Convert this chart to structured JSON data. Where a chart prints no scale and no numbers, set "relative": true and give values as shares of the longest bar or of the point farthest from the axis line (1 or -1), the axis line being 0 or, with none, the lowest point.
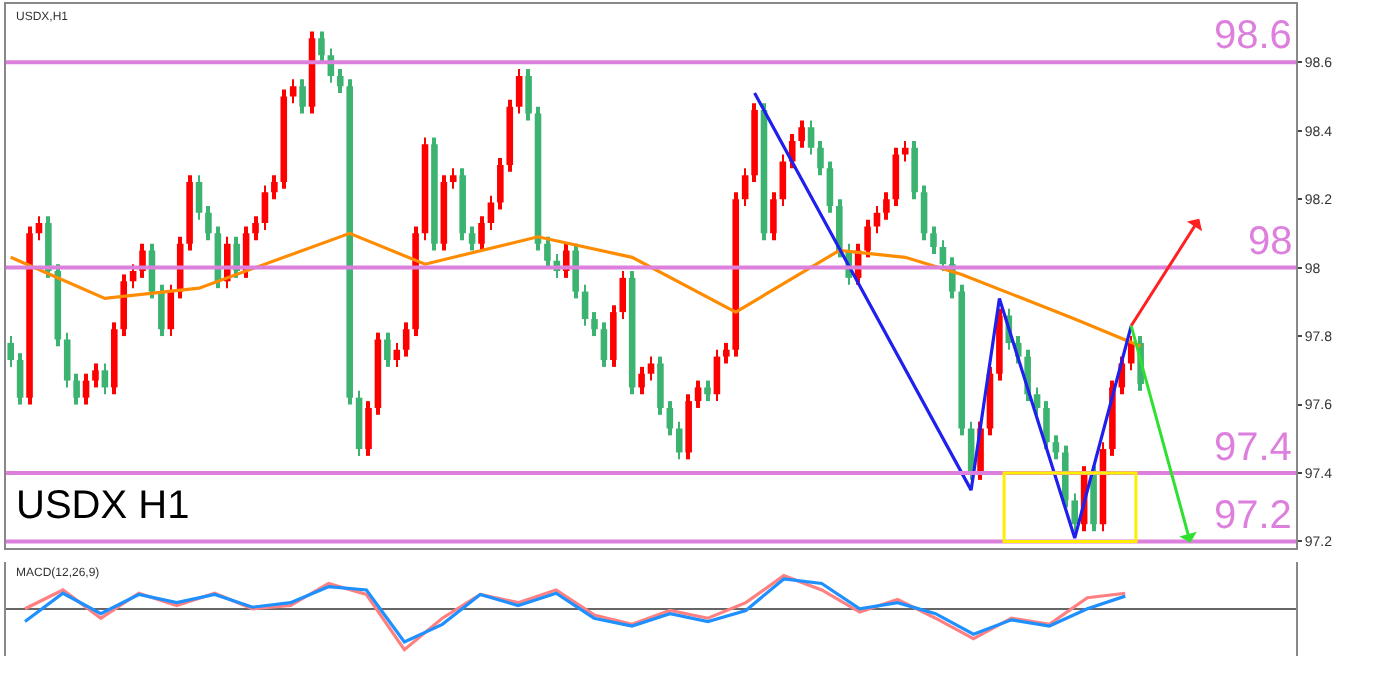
{
  "chart_data": [
    {
      "type": "candlestick",
      "annotations": [
        "USDX,H1",
        "USDX H1"
      ],
      "categories": [
        null,
        null,
        null,
        null,
        null,
        null,
        null,
        null,
        null,
        null,
        null,
        null,
        null,
        null,
        null,
        null,
        null,
        null,
        null,
        null,
        null,
        null,
        null,
        null,
        null,
        null,
        null,
        null,
        null,
        null,
        null,
        null,
        null,
        null,
        null,
        null,
        null,
        null,
        null,
        null,
        null,
        null,
        null,
        null,
        null,
        null,
        null,
        null,
        null,
        null,
        null,
        null,
        null,
        null,
        null,
        null,
        null,
        null,
        null,
        null,
        null,
        null,
        null,
        null,
        null,
        null,
        null,
        null,
        null,
        null,
        null,
        null,
        null,
        null,
        null,
        null,
        null,
        null,
        null,
        null,
        null,
        null,
        null,
        null,
        null,
        null,
        null,
        null,
        null,
        null,
        null,
        null,
        null,
        null,
        null,
        null,
        null,
        null,
        null,
        null,
        null,
        null,
        null,
        null,
        null,
        null,
        null,
        null,
        null,
        null,
        null,
        null,
        null,
        null,
        null,
        null,
        null,
        null,
        null,
        null,
        null,
        null,
        null,
        null,
        null,
        null,
        null,
        null,
        null,
        null,
        null,
        null,
        null,
        null,
        null,
        null,
        null
      ],
      "colors": [
        "#3cb371",
        "#3cb371",
        "#ff0000",
        "#ff0000",
        "#3cb371",
        "#3cb371",
        "#3cb371",
        "#3cb371",
        "#ff0000",
        "#ff0000",
        "#3cb371",
        "#ff0000",
        "#ff0000",
        "#ff0000",
        "#ff0000",
        "#3cb371",
        "#3cb371",
        "#ff0000",
        "#ff0000",
        "#ff0000",
        "#3cb371",
        "#3cb371",
        "#3cb371",
        "#ff0000",
        "#3cb371",
        "#ff0000",
        "#ff0000",
        "#ff0000",
        "#ff0000",
        "#ff0000",
        "#ff0000",
        "#3cb371",
        "#ff0000",
        "#3cb371",
        "#3cb371",
        "#3cb371",
        "#3cb371",
        "#3cb371",
        "#ff0000",
        "#ff0000",
        "#3cb371",
        "#ff0000",
        "#ff0000",
        "#ff0000",
        "#ff0000",
        "#3cb371",
        "#ff0000",
        "#ff0000",
        "#3cb371",
        "#3cb371",
        "#ff0000",
        "#ff0000",
        "#ff0000",
        "#ff0000",
        "#ff0000",
        "#3cb371",
        "#3cb371",
        "#3cb371",
        "#3cb371",
        "#ff0000",
        "#3cb371",
        "#3cb371",
        "#3cb371",
        "#3cb371",
        "#ff0000",
        "#ff0000",
        "#3cb371",
        "#ff0000",
        "#ff0000",
        "#3cb371",
        "#3cb371",
        "#3cb371",
        "#ff0000",
        "#ff0000",
        "#3cb371",
        "#ff0000",
        "#ff0000",
        "#ff0000",
        "#ff0000",
        "#ff0000",
        "#3cb371",
        "#ff0000",
        "#ff0000",
        "#ff0000",
        "#ff0000",
        "#3cb371",
        "#3cb371",
        "#3cb371",
        "#3cb371",
        "#3cb371",
        "#ff0000",
        "#ff0000",
        "#ff0000",
        "#ff0000",
        "#ff0000",
        "#ff0000",
        "#3cb371",
        "#3cb371",
        "#3cb371",
        "#3cb371",
        "#3cb371",
        "#3cb371",
        "#3cb371",
        "#ff0000",
        "#ff0000",
        "#ff0000",
        "#3cb371",
        "#3cb371",
        "#3cb371",
        "#3cb371",
        "#3cb371",
        "#3cb371",
        "#3cb371",
        "#3cb371",
        "#ff0000",
        "#3cb371",
        "#ff0000",
        "#ff0000",
        "#ff0000",
        "#ff0000",
        "#3cb371",
        null,
        null,
        null,
        null,
        null,
        null,
        null,
        null,
        null,
        null,
        null,
        null,
        null,
        null,
        null,
        null
      ],
      "ohlc": [
        [
          97.78,
          97.8,
          97.71,
          97.73
        ],
        [
          97.73,
          97.75,
          97.6,
          97.62
        ],
        [
          97.62,
          98.12,
          97.6,
          98.1
        ],
        [
          98.1,
          98.15,
          98.08,
          98.13
        ],
        [
          98.13,
          98.15,
          97.97,
          97.99
        ],
        [
          97.99,
          98.01,
          97.77,
          97.79
        ],
        [
          97.79,
          97.81,
          97.65,
          97.67
        ],
        [
          97.67,
          97.69,
          97.6,
          97.62
        ],
        [
          97.62,
          97.69,
          97.6,
          97.67
        ],
        [
          97.67,
          97.72,
          97.65,
          97.7
        ],
        [
          97.7,
          97.72,
          97.63,
          97.65
        ],
        [
          97.65,
          97.84,
          97.63,
          97.82
        ],
        [
          97.82,
          97.98,
          97.8,
          97.96
        ],
        [
          97.96,
          98.01,
          97.94,
          97.99
        ],
        [
          97.99,
          98.07,
          97.97,
          98.05
        ],
        [
          98.05,
          98.07,
          97.91,
          97.93
        ],
        [
          97.93,
          97.95,
          97.8,
          97.82
        ],
        [
          97.82,
          97.95,
          97.8,
          97.93
        ],
        [
          97.93,
          98.09,
          97.91,
          98.07
        ],
        [
          98.07,
          98.27,
          98.05,
          98.25
        ],
        [
          98.25,
          98.27,
          98.14,
          98.16
        ],
        [
          98.16,
          98.18,
          98.08,
          98.1
        ],
        [
          98.1,
          98.12,
          97.94,
          97.96
        ],
        [
          97.96,
          98.09,
          97.94,
          98.07
        ],
        [
          98.07,
          98.09,
          97.97,
          97.99
        ],
        [
          97.99,
          98.12,
          97.97,
          98.1
        ],
        [
          98.1,
          98.15,
          98.08,
          98.13
        ],
        [
          98.13,
          98.24,
          98.11,
          98.22
        ],
        [
          98.22,
          98.27,
          98.2,
          98.25
        ],
        [
          98.25,
          98.52,
          98.23,
          98.5
        ],
        [
          98.5,
          98.55,
          98.48,
          98.53
        ],
        [
          98.53,
          98.55,
          98.45,
          98.47
        ],
        [
          98.47,
          98.69,
          98.45,
          98.67
        ],
        [
          98.67,
          98.69,
          98.6,
          98.62
        ],
        [
          98.62,
          98.64,
          98.54,
          98.56
        ],
        [
          98.56,
          98.58,
          98.51,
          98.53
        ],
        [
          98.53,
          98.55,
          97.6,
          97.62
        ],
        [
          97.62,
          97.64,
          97.45,
          97.47
        ],
        [
          97.47,
          97.61,
          97.45,
          97.59
        ],
        [
          97.59,
          97.81,
          97.57,
          97.79
        ],
        [
          97.79,
          97.81,
          97.71,
          97.73
        ],
        [
          97.73,
          97.78,
          97.71,
          97.76
        ],
        [
          97.76,
          97.84,
          97.74,
          97.82
        ],
        [
          97.82,
          98.12,
          97.8,
          98.1
        ],
        [
          98.1,
          98.38,
          98.08,
          98.36
        ],
        [
          98.36,
          98.38,
          98.05,
          98.07
        ],
        [
          98.07,
          98.27,
          98.05,
          98.25
        ],
        [
          98.25,
          98.29,
          98.23,
          98.27
        ],
        [
          98.27,
          98.29,
          98.08,
          98.1
        ],
        [
          98.1,
          98.12,
          98.05,
          98.07
        ],
        [
          98.07,
          98.15,
          98.05,
          98.13
        ],
        [
          98.13,
          98.21,
          98.11,
          98.19
        ],
        [
          98.19,
          98.32,
          98.17,
          98.3
        ],
        [
          98.3,
          98.49,
          98.28,
          98.47
        ],
        [
          98.47,
          98.58,
          98.45,
          98.56
        ],
        [
          98.56,
          98.58,
          98.43,
          98.45
        ],
        [
          98.45,
          98.47,
          98.05,
          98.07
        ],
        [
          98.07,
          98.09,
          98.0,
          98.02
        ],
        [
          98.02,
          98.04,
          97.97,
          97.99
        ],
        [
          97.99,
          98.07,
          97.97,
          98.05
        ],
        [
          98.05,
          98.07,
          97.91,
          97.93
        ],
        [
          97.93,
          97.95,
          97.83,
          97.85
        ],
        [
          97.85,
          97.87,
          97.8,
          97.82
        ],
        [
          97.82,
          97.84,
          97.71,
          97.73
        ],
        [
          97.73,
          97.89,
          97.71,
          97.87
        ],
        [
          97.87,
          97.99,
          97.85,
          97.97
        ],
        [
          97.97,
          97.99,
          97.63,
          97.65
        ],
        [
          97.65,
          97.71,
          97.63,
          97.69
        ],
        [
          97.69,
          97.74,
          97.67,
          97.72
        ],
        [
          97.72,
          97.74,
          97.57,
          97.59
        ],
        [
          97.59,
          97.61,
          97.51,
          97.53
        ],
        [
          97.53,
          97.55,
          97.44,
          97.46
        ],
        [
          97.46,
          97.63,
          97.44,
          97.61
        ],
        [
          97.61,
          97.67,
          97.59,
          97.65
        ],
        [
          97.65,
          97.67,
          97.61,
          97.63
        ],
        [
          97.63,
          97.76,
          97.61,
          97.74
        ],
        [
          97.74,
          97.78,
          97.72,
          97.76
        ],
        [
          97.76,
          98.22,
          97.74,
          98.2
        ],
        [
          98.2,
          98.29,
          98.18,
          98.27
        ],
        [
          98.27,
          98.48,
          98.25,
          98.46
        ],
        [
          98.46,
          98.48,
          98.08,
          98.1
        ],
        [
          98.1,
          98.22,
          98.08,
          98.2
        ],
        [
          98.2,
          98.33,
          98.18,
          98.31
        ],
        [
          98.31,
          98.39,
          98.29,
          98.37
        ],
        [
          98.37,
          98.43,
          98.35,
          98.41
        ],
        [
          98.41,
          98.43,
          98.33,
          98.35
        ],
        [
          98.35,
          98.37,
          98.27,
          98.29
        ],
        [
          98.29,
          98.31,
          98.16,
          98.18
        ],
        [
          98.18,
          98.2,
          98.03,
          98.05
        ],
        [
          98.05,
          98.07,
          97.95,
          97.97
        ],
        [
          97.97,
          98.07,
          97.95,
          98.05
        ],
        [
          98.05,
          98.14,
          98.03,
          98.12
        ],
        [
          98.12,
          98.18,
          98.1,
          98.16
        ],
        [
          98.16,
          98.22,
          98.14,
          98.2
        ],
        [
          98.2,
          98.35,
          98.18,
          98.33
        ],
        [
          98.33,
          98.37,
          98.31,
          98.35
        ],
        [
          98.35,
          98.37,
          98.2,
          98.22
        ],
        [
          98.22,
          98.24,
          98.08,
          98.1
        ],
        [
          98.1,
          98.12,
          98.04,
          98.06
        ],
        [
          98.06,
          98.08,
          97.99,
          98.01
        ],
        [
          98.01,
          98.03,
          97.91,
          97.93
        ],
        [
          97.93,
          97.95,
          97.51,
          97.53
        ],
        [
          97.53,
          97.55,
          97.38,
          97.4
        ],
        [
          97.4,
          97.55,
          97.38,
          97.53
        ],
        [
          97.53,
          97.71,
          97.51,
          97.69
        ],
        [
          97.69,
          97.88,
          97.67,
          97.86
        ],
        [
          97.86,
          97.88,
          97.76,
          97.78
        ],
        [
          97.78,
          97.8,
          97.72,
          97.74
        ],
        [
          97.74,
          97.76,
          97.61,
          97.63
        ],
        [
          97.63,
          97.65,
          97.57,
          97.59
        ],
        [
          97.59,
          97.61,
          97.47,
          97.49
        ],
        [
          97.49,
          97.51,
          97.44,
          97.46
        ],
        [
          97.46,
          97.48,
          97.3,
          97.32
        ],
        [
          97.32,
          97.34,
          97.23,
          97.25
        ],
        [
          97.25,
          97.42,
          97.23,
          97.4
        ],
        [
          97.4,
          97.42,
          97.23,
          97.25
        ],
        [
          97.25,
          97.49,
          97.23,
          97.47
        ],
        [
          97.47,
          97.67,
          97.45,
          97.65
        ],
        [
          97.65,
          97.74,
          97.63,
          97.72
        ],
        [
          97.72,
          97.8,
          97.7,
          97.78
        ],
        [
          97.78,
          97.8,
          97.64,
          97.66
        ],
        null,
        null,
        null,
        null,
        null,
        null,
        null,
        null,
        null,
        null,
        null,
        null,
        null,
        null,
        null,
        null
      ],
      "series": [
        {
          "type": "line",
          "color": "#ff8c00",
          "values": [
            98.03,
            null,
            null,
            null,
            null,
            null,
            null,
            null,
            null,
            null,
            97.91,
            null,
            null,
            null,
            null,
            null,
            null,
            null,
            null,
            null,
            97.94,
            null,
            null,
            null,
            null,
            null,
            null,
            null,
            null,
            null,
            null,
            null,
            null,
            null,
            null,
            null,
            98.1,
            null,
            null,
            null,
            null,
            null,
            null,
            null,
            98.01,
            null,
            null,
            null,
            null,
            null,
            null,
            null,
            null,
            null,
            null,
            null,
            98.09,
            null,
            null,
            null,
            null,
            null,
            null,
            null,
            null,
            null,
            98.03,
            null,
            null,
            null,
            null,
            null,
            null,
            null,
            null,
            null,
            null,
            97.87,
            null,
            null,
            null,
            null,
            null,
            null,
            null,
            null,
            null,
            null,
            98.05,
            null,
            null,
            null,
            null,
            null,
            null,
            98.03,
            null,
            null,
            null,
            null,
            null,
            97.98,
            null,
            null,
            null,
            null,
            null,
            null,
            null,
            null,
            null,
            null,
            null,
            97.85,
            null,
            null,
            null,
            null,
            null,
            null,
            97.77,
            null,
            null,
            null,
            null,
            null,
            null,
            null,
            null,
            null,
            null,
            null,
            null,
            null,
            null,
            null,
            null
          ]
        },
        {
          "type": "line",
          "color": "#2020ee",
          "values": [
            null,
            null,
            null,
            null,
            null,
            null,
            null,
            null,
            null,
            null,
            null,
            null,
            null,
            null,
            null,
            null,
            null,
            null,
            null,
            null,
            null,
            null,
            null,
            null,
            null,
            null,
            null,
            null,
            null,
            null,
            null,
            null,
            null,
            null,
            null,
            null,
            null,
            null,
            null,
            null,
            null,
            null,
            null,
            null,
            null,
            null,
            null,
            null,
            null,
            null,
            null,
            null,
            null,
            null,
            null,
            null,
            null,
            null,
            null,
            null,
            null,
            null,
            null,
            null,
            null,
            null,
            null,
            null,
            null,
            null,
            null,
            null,
            null,
            null,
            null,
            null,
            null,
            null,
            null,
            98.51,
            null,
            null,
            null,
            null,
            null,
            null,
            null,
            null,
            null,
            null,
            null,
            null,
            null,
            null,
            null,
            null,
            null,
            null,
            null,
            null,
            null,
            null,
            97.35,
            null,
            null,
            97.91,
            null,
            null,
            null,
            null,
            null,
            null,
            null,
            97.21,
            null,
            null,
            null,
            null,
            null,
            97.83,
            null,
            null,
            null,
            null,
            null,
            null,
            null,
            null,
            null,
            null,
            null,
            null,
            null,
            null,
            null,
            null,
            null
          ]
        }
      ],
      "ylim": [
        97.18,
        98.77
      ],
      "yticks": [
        97.2,
        97.4,
        97.6,
        97.8,
        98,
        98.2,
        98.4,
        98.6
      ],
      "ref_lines": [
        {
          "axis": "y",
          "value": 98.6,
          "label": "98.6",
          "color": "#dd80dd"
        },
        {
          "axis": "y",
          "value": 98,
          "label": "98",
          "color": "#dd80dd"
        },
        {
          "axis": "y",
          "value": 97.4,
          "label": "97.4",
          "color": "#dd80dd"
        },
        {
          "axis": "y",
          "value": 97.2,
          "label": "97.2",
          "color": "#dd80dd"
        }
      ]
    },
    {
      "type": "line",
      "relative": true,
      "annotations": [
        "MACD(12,26,9)"
      ],
      "categories": [
        null,
        null,
        null,
        null,
        null,
        null,
        null,
        null,
        null,
        null,
        null,
        null,
        null,
        null,
        null,
        null,
        null,
        null,
        null,
        null,
        null,
        null,
        null,
        null,
        null,
        null,
        null,
        null,
        null,
        null,
        null,
        null,
        null,
        null
      ],
      "series": [
        {
          "color": "#ff8080",
          "values": [
            0,
            0.46,
            -0.23,
            0.38,
            0.08,
            0.38,
            0,
            0.08,
            0.62,
            0.35,
            -1,
            -0.23,
            0.35,
            0.15,
            0.46,
            -0.15,
            -0.38,
            -0.04,
            -0.23,
            0.15,
            0.81,
            0.46,
            -0.08,
            0.23,
            -0.23,
            -0.73,
            -0.23,
            -0.38,
            0.27,
            0.38,
            null,
            null,
            null,
            null
          ]
        },
        {
          "color": "#1e90ff",
          "values": [
            -0.31,
            0.38,
            -0.12,
            0.35,
            0.15,
            0.35,
            0.04,
            0.15,
            0.54,
            0.46,
            -0.81,
            -0.38,
            0.35,
            0.08,
            0.38,
            -0.23,
            -0.42,
            -0.12,
            -0.31,
            -0.04,
            0.73,
            0.62,
            0,
            0.15,
            -0.12,
            -0.62,
            -0.27,
            -0.42,
            0,
            0.31,
            null,
            null,
            null,
            null
          ]
        }
      ]
    }
  ]
}
